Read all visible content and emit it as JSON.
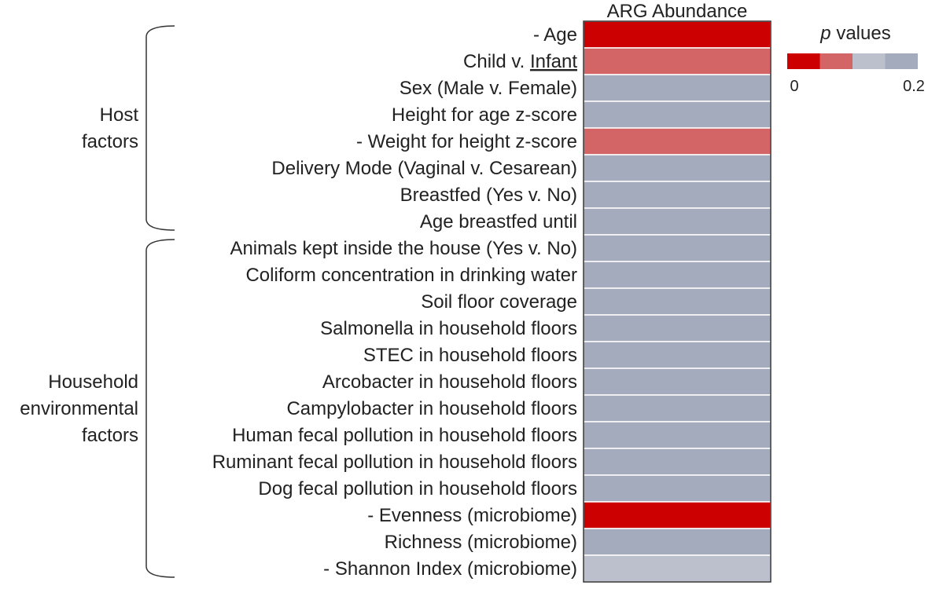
{
  "chart_data": {
    "type": "heatmap",
    "column_title": "ARG Abundance",
    "rows": [
      {
        "label": "Age",
        "sign": "-",
        "p_bin": 0
      },
      {
        "label": "Child v. Infant",
        "sign": "",
        "p_bin": 1
      },
      {
        "label": "Sex (Male v. Female)",
        "sign": "",
        "p_bin": 3
      },
      {
        "label": "Height for age z-score",
        "sign": "",
        "p_bin": 3
      },
      {
        "label": "Weight for height z-score",
        "sign": "-",
        "p_bin": 1
      },
      {
        "label": "Delivery Mode (Vaginal v. Cesarean)",
        "sign": "",
        "p_bin": 3
      },
      {
        "label": "Breastfed (Yes v. No)",
        "sign": "",
        "p_bin": 3
      },
      {
        "label": "Age breastfed until",
        "sign": "",
        "p_bin": 3
      },
      {
        "label": "Animals kept inside the house (Yes v. No)",
        "sign": "",
        "p_bin": 3
      },
      {
        "label": "Coliform concentration in drinking water",
        "sign": "",
        "p_bin": 3
      },
      {
        "label": "Soil floor coverage",
        "sign": "",
        "p_bin": 3
      },
      {
        "label": "Salmonella in household floors",
        "sign": "",
        "p_bin": 3
      },
      {
        "label": "STEC in household floors",
        "sign": "",
        "p_bin": 3
      },
      {
        "label": "Arcobacter in household floors",
        "sign": "",
        "p_bin": 3
      },
      {
        "label": "Campylobacter in household floors",
        "sign": "",
        "p_bin": 3
      },
      {
        "label": "Human fecal pollution in household floors",
        "sign": "",
        "p_bin": 3
      },
      {
        "label": "Ruminant fecal pollution in household floors",
        "sign": "",
        "p_bin": 3
      },
      {
        "label": "Dog fecal pollution in household floors",
        "sign": "",
        "p_bin": 3
      },
      {
        "label": "Evenness (microbiome)",
        "sign": "-",
        "p_bin": 0
      },
      {
        "label": "Richness (microbiome)",
        "sign": "",
        "p_bin": 3
      },
      {
        "label": "Shannon Index (microbiome)",
        "sign": "-",
        "p_bin": 2
      }
    ],
    "groups": [
      {
        "label_lines": [
          "Host",
          "factors"
        ],
        "start_row": 0,
        "end_row": 7
      },
      {
        "label_lines": [
          "Household",
          "environmental",
          "factors"
        ],
        "start_row": 8,
        "end_row": 20
      }
    ],
    "legend": {
      "title_italic": "p",
      "title_rest": " values",
      "min_label": "0",
      "max_label": "0.2",
      "colors": [
        "#cc0000",
        "#d46566",
        "#bcc0cc",
        "#a3abbd"
      ]
    },
    "underlined_word": "Infant"
  }
}
